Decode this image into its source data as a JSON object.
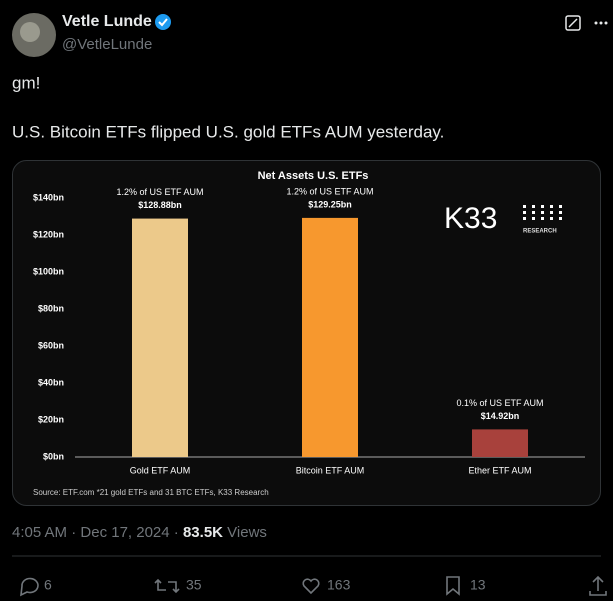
{
  "author": {
    "name": "Vetle Lunde",
    "handle": "@VetleLunde"
  },
  "tweet": {
    "lines": [
      "gm!",
      "U.S. Bitcoin ETFs flipped U.S. gold ETFs AUM yesterday."
    ]
  },
  "chart_data": {
    "type": "bar",
    "title": "Net Assets U.S. ETFs",
    "categories": [
      "Gold ETF AUM",
      "Bitcoin ETF AUM",
      "Ether ETF AUM"
    ],
    "values": [
      128.88,
      129.25,
      14.92
    ],
    "value_labels": [
      "$128.88bn",
      "$129.25bn",
      "$14.92bn"
    ],
    "shares": [
      "1.2% of US ETF AUM",
      "1.2% of US ETF AUM",
      "0.1% of US ETF AUM"
    ],
    "colors": [
      "#ecc98a",
      "#f7982e",
      "#a8413c"
    ],
    "ylim": [
      0,
      140
    ],
    "yticks": [
      {
        "value": 0,
        "label": "$0bn"
      },
      {
        "value": 20,
        "label": "$20bn"
      },
      {
        "value": 40,
        "label": "$40bn"
      },
      {
        "value": 60,
        "label": "$60bn"
      },
      {
        "value": 80,
        "label": "$80bn"
      },
      {
        "value": 100,
        "label": "$100bn"
      },
      {
        "value": 120,
        "label": "$120bn"
      },
      {
        "value": 140,
        "label": "$140bn"
      }
    ],
    "source": "Source: ETF.com *21 gold ETFs and 31 BTC ETFs, K33 Research",
    "logo": {
      "name": "K33",
      "sub": "RESEARCH"
    }
  },
  "meta": {
    "time": "4:05 AM",
    "separator": "·",
    "date": "Dec 17, 2024",
    "views": "83.5K",
    "views_label": "Views"
  },
  "stats": {
    "replies": "6",
    "reposts": "35",
    "likes": "163",
    "bookmarks": "13"
  }
}
